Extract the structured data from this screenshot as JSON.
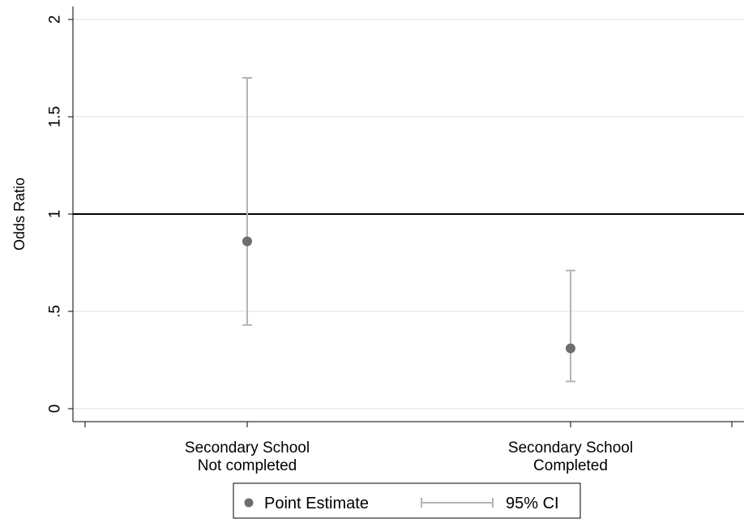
{
  "chart_data": {
    "type": "scatter",
    "title": "",
    "xlabel": "",
    "ylabel": "Odds Ratio",
    "ylim": [
      0,
      2
    ],
    "yticks": [
      {
        "value": 0,
        "label": "0"
      },
      {
        "value": 0.5,
        "label": ".5"
      },
      {
        "value": 1,
        "label": "1"
      },
      {
        "value": 1.5,
        "label": "1.5"
      },
      {
        "value": 2,
        "label": "2"
      }
    ],
    "categories": [
      {
        "line1": "Secondary School",
        "line2": "Not completed"
      },
      {
        "line1": "Secondary School",
        "line2": "Completed"
      }
    ],
    "series": [
      {
        "name": "Point Estimate",
        "values": [
          0.86,
          0.31
        ]
      },
      {
        "name": "95% CI",
        "lower": [
          0.43,
          0.14
        ],
        "upper": [
          1.7,
          0.71
        ]
      }
    ],
    "reference_line": 1,
    "grid": true,
    "legend": {
      "position": "bottom-center",
      "items": [
        "Point Estimate",
        "95% CI"
      ]
    },
    "colors": {
      "point": "#6e6e6e",
      "ci": "#b4b4b4",
      "reference": "#000000",
      "grid": "#eaeaea",
      "axis": "#000000"
    }
  }
}
